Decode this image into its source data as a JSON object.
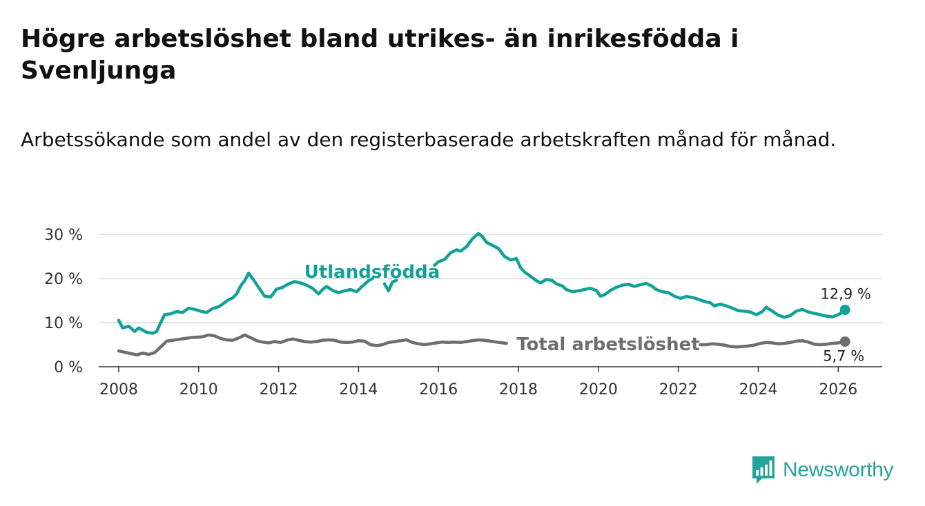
{
  "title": "Högre arbetslöshet bland utrikes- än inrikesfödda i Svenljunga",
  "subtitle": "Arbetssökande som andel av den registerbaserade arbetskraften månad för månad.",
  "logo": {
    "text": "Newsworthy",
    "icon": "bar-chart-icon",
    "color": "#24a39a"
  },
  "chart_data": {
    "type": "line",
    "title": "Högre arbetslöshet bland utrikes- än inrikesfödda i Svenljunga",
    "xlabel": "",
    "ylabel": "",
    "xlim": [
      2007.5,
      2027.1
    ],
    "ylim": [
      0,
      30
    ],
    "grid": true,
    "x_ticks": [
      2008,
      2010,
      2012,
      2014,
      2016,
      2018,
      2020,
      2022,
      2024,
      2026
    ],
    "x_tick_labels": [
      "2008",
      "2010",
      "2012",
      "2014",
      "2016",
      "2018",
      "2020",
      "2022",
      "2024",
      "2026"
    ],
    "y_ticks": [
      0,
      10,
      20,
      30
    ],
    "y_tick_labels": [
      "0 %",
      "10 %",
      "20 %",
      "30 %"
    ],
    "series": [
      {
        "name": "Utlandsfödda",
        "color": "#12a197",
        "end_label": "12,9 %",
        "points": [
          [
            2008.0,
            10.5
          ],
          [
            2008.1,
            8.8
          ],
          [
            2008.25,
            9.2
          ],
          [
            2008.4,
            8.0
          ],
          [
            2008.5,
            8.8
          ],
          [
            2008.6,
            8.3
          ],
          [
            2008.7,
            7.8
          ],
          [
            2008.85,
            7.6
          ],
          [
            2008.95,
            8.0
          ],
          [
            2009.05,
            10.0
          ],
          [
            2009.15,
            11.8
          ],
          [
            2009.3,
            12.0
          ],
          [
            2009.45,
            12.5
          ],
          [
            2009.6,
            12.3
          ],
          [
            2009.75,
            13.3
          ],
          [
            2009.9,
            13.0
          ],
          [
            2010.05,
            12.6
          ],
          [
            2010.2,
            12.3
          ],
          [
            2010.35,
            13.2
          ],
          [
            2010.5,
            13.6
          ],
          [
            2010.6,
            14.2
          ],
          [
            2010.75,
            15.2
          ],
          [
            2010.85,
            15.6
          ],
          [
            2010.95,
            16.5
          ],
          [
            2011.05,
            18.3
          ],
          [
            2011.15,
            19.5
          ],
          [
            2011.25,
            21.2
          ],
          [
            2011.35,
            20.0
          ],
          [
            2011.5,
            18.0
          ],
          [
            2011.65,
            16.0
          ],
          [
            2011.8,
            15.8
          ],
          [
            2011.95,
            17.6
          ],
          [
            2012.1,
            18.0
          ],
          [
            2012.25,
            18.8
          ],
          [
            2012.4,
            19.3
          ],
          [
            2012.55,
            19.0
          ],
          [
            2012.7,
            18.5
          ],
          [
            2012.85,
            17.8
          ],
          [
            2013.0,
            16.5
          ],
          [
            2013.1,
            17.5
          ],
          [
            2013.2,
            18.2
          ],
          [
            2013.35,
            17.3
          ],
          [
            2013.5,
            16.8
          ],
          [
            2013.65,
            17.2
          ],
          [
            2013.8,
            17.5
          ],
          [
            2013.95,
            17.0
          ],
          [
            2014.1,
            18.3
          ],
          [
            2014.25,
            19.5
          ],
          [
            2014.35,
            20.0
          ],
          null,
          [
            2014.65,
            18.8
          ],
          [
            2014.75,
            17.2
          ],
          [
            2014.85,
            19.2
          ],
          [
            2014.95,
            19.6
          ],
          null,
          [
            2015.9,
            23.0
          ],
          [
            2016.0,
            23.8
          ],
          [
            2016.15,
            24.3
          ],
          [
            2016.3,
            25.8
          ],
          [
            2016.45,
            26.5
          ],
          [
            2016.55,
            26.2
          ],
          [
            2016.7,
            27.2
          ],
          [
            2016.85,
            29.0
          ],
          [
            2017.0,
            30.2
          ],
          [
            2017.1,
            29.5
          ],
          [
            2017.2,
            28.2
          ],
          [
            2017.35,
            27.5
          ],
          [
            2017.5,
            26.8
          ],
          [
            2017.65,
            25.0
          ],
          [
            2017.8,
            24.2
          ],
          [
            2017.95,
            24.5
          ],
          [
            2018.05,
            22.5
          ],
          [
            2018.15,
            21.5
          ],
          [
            2018.3,
            20.5
          ],
          [
            2018.45,
            19.5
          ],
          [
            2018.55,
            19.0
          ],
          [
            2018.7,
            19.8
          ],
          [
            2018.85,
            19.5
          ],
          [
            2018.95,
            18.8
          ],
          [
            2019.1,
            18.3
          ],
          [
            2019.2,
            17.5
          ],
          [
            2019.35,
            17.0
          ],
          [
            2019.5,
            17.2
          ],
          [
            2019.65,
            17.5
          ],
          [
            2019.8,
            17.8
          ],
          [
            2019.95,
            17.3
          ],
          [
            2020.05,
            16.0
          ],
          [
            2020.15,
            16.3
          ],
          [
            2020.3,
            17.3
          ],
          [
            2020.45,
            18.0
          ],
          [
            2020.6,
            18.5
          ],
          [
            2020.75,
            18.7
          ],
          [
            2020.9,
            18.2
          ],
          [
            2021.05,
            18.6
          ],
          [
            2021.2,
            18.9
          ],
          [
            2021.35,
            18.2
          ],
          [
            2021.45,
            17.5
          ],
          [
            2021.6,
            17.0
          ],
          [
            2021.75,
            16.8
          ],
          [
            2021.9,
            16.0
          ],
          [
            2022.05,
            15.5
          ],
          [
            2022.2,
            15.9
          ],
          [
            2022.35,
            15.7
          ],
          [
            2022.5,
            15.3
          ],
          [
            2022.65,
            14.8
          ],
          [
            2022.8,
            14.5
          ],
          [
            2022.9,
            13.8
          ],
          [
            2023.05,
            14.2
          ],
          [
            2023.2,
            13.8
          ],
          [
            2023.35,
            13.3
          ],
          [
            2023.5,
            12.7
          ],
          [
            2023.65,
            12.6
          ],
          [
            2023.8,
            12.4
          ],
          [
            2023.95,
            11.8
          ],
          [
            2024.1,
            12.5
          ],
          [
            2024.2,
            13.5
          ],
          [
            2024.35,
            12.6
          ],
          [
            2024.5,
            11.7
          ],
          [
            2024.65,
            11.2
          ],
          [
            2024.8,
            11.6
          ],
          [
            2024.95,
            12.6
          ],
          [
            2025.1,
            13.0
          ],
          [
            2025.25,
            12.4
          ],
          [
            2025.4,
            12.1
          ],
          [
            2025.55,
            11.8
          ],
          [
            2025.7,
            11.5
          ],
          [
            2025.85,
            11.3
          ],
          [
            2026.0,
            11.8
          ],
          [
            2026.1,
            12.4
          ],
          [
            2026.17,
            12.9
          ]
        ]
      },
      {
        "name": "Total arbetslöshet",
        "color": "#6e6e72",
        "end_label": "5,7 %",
        "points": [
          [
            2008.0,
            3.6
          ],
          [
            2008.15,
            3.3
          ],
          [
            2008.3,
            3.0
          ],
          [
            2008.45,
            2.7
          ],
          [
            2008.6,
            3.1
          ],
          [
            2008.75,
            2.8
          ],
          [
            2008.9,
            3.2
          ],
          [
            2009.05,
            4.5
          ],
          [
            2009.2,
            5.8
          ],
          [
            2009.35,
            6.0
          ],
          [
            2009.5,
            6.2
          ],
          [
            2009.65,
            6.4
          ],
          [
            2009.8,
            6.6
          ],
          [
            2009.95,
            6.7
          ],
          [
            2010.1,
            6.8
          ],
          [
            2010.25,
            7.2
          ],
          [
            2010.4,
            7.0
          ],
          [
            2010.55,
            6.4
          ],
          [
            2010.7,
            6.1
          ],
          [
            2010.85,
            6.0
          ],
          [
            2011.0,
            6.5
          ],
          [
            2011.15,
            7.2
          ],
          [
            2011.3,
            6.6
          ],
          [
            2011.45,
            5.9
          ],
          [
            2011.6,
            5.6
          ],
          [
            2011.75,
            5.4
          ],
          [
            2011.9,
            5.7
          ],
          [
            2012.05,
            5.5
          ],
          [
            2012.2,
            6.0
          ],
          [
            2012.35,
            6.3
          ],
          [
            2012.5,
            6.0
          ],
          [
            2012.65,
            5.7
          ],
          [
            2012.8,
            5.6
          ],
          [
            2012.95,
            5.7
          ],
          [
            2013.1,
            6.0
          ],
          [
            2013.25,
            6.1
          ],
          [
            2013.4,
            6.0
          ],
          [
            2013.55,
            5.6
          ],
          [
            2013.7,
            5.5
          ],
          [
            2013.85,
            5.6
          ],
          [
            2014.0,
            5.9
          ],
          [
            2014.15,
            5.8
          ],
          [
            2014.3,
            5.0
          ],
          [
            2014.45,
            4.8
          ],
          [
            2014.6,
            5.0
          ],
          [
            2014.75,
            5.5
          ],
          [
            2014.9,
            5.7
          ],
          [
            2015.05,
            5.9
          ],
          [
            2015.2,
            6.1
          ],
          [
            2015.35,
            5.5
          ],
          [
            2015.5,
            5.2
          ],
          [
            2015.65,
            5.0
          ],
          [
            2015.8,
            5.2
          ],
          [
            2015.95,
            5.4
          ],
          [
            2016.1,
            5.6
          ],
          [
            2016.25,
            5.5
          ],
          [
            2016.4,
            5.6
          ],
          [
            2016.55,
            5.5
          ],
          [
            2016.7,
            5.7
          ],
          [
            2016.85,
            5.9
          ],
          [
            2017.0,
            6.1
          ],
          [
            2017.15,
            6.0
          ],
          [
            2017.3,
            5.8
          ],
          [
            2017.45,
            5.6
          ],
          [
            2017.6,
            5.4
          ],
          [
            2017.7,
            5.3
          ],
          null,
          [
            2022.55,
            5.0
          ],
          [
            2022.7,
            5.0
          ],
          [
            2022.85,
            5.2
          ],
          [
            2023.0,
            5.1
          ],
          [
            2023.15,
            4.9
          ],
          [
            2023.3,
            4.6
          ],
          [
            2023.45,
            4.5
          ],
          [
            2023.6,
            4.6
          ],
          [
            2023.75,
            4.7
          ],
          [
            2023.9,
            4.9
          ],
          [
            2024.05,
            5.3
          ],
          [
            2024.2,
            5.5
          ],
          [
            2024.35,
            5.4
          ],
          [
            2024.5,
            5.2
          ],
          [
            2024.65,
            5.3
          ],
          [
            2024.8,
            5.5
          ],
          [
            2024.95,
            5.8
          ],
          [
            2025.1,
            5.9
          ],
          [
            2025.25,
            5.6
          ],
          [
            2025.4,
            5.1
          ],
          [
            2025.55,
            5.0
          ],
          [
            2025.7,
            5.1
          ],
          [
            2025.85,
            5.3
          ],
          [
            2026.0,
            5.4
          ],
          [
            2026.1,
            5.6
          ],
          [
            2026.17,
            5.7
          ]
        ]
      }
    ]
  }
}
